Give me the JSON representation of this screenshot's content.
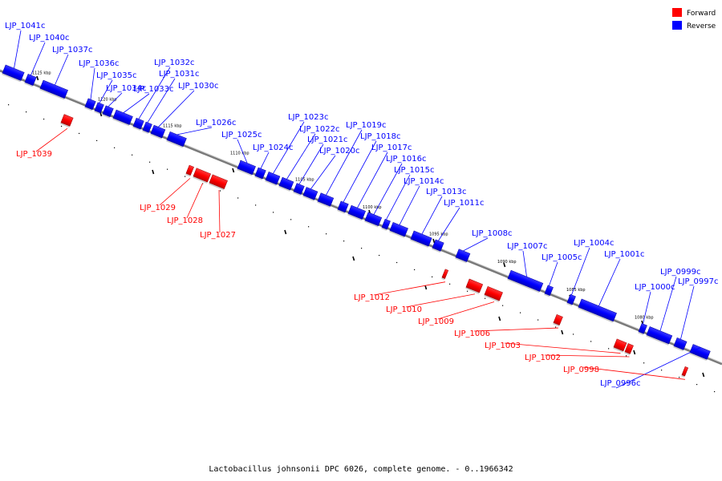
{
  "caption": "Lactobacillus johnsonii DPC 6026, complete genome. - 0..1966342",
  "legend": {
    "forward_label": "Forward",
    "reverse_label": "Reverse",
    "forward_color": "#ff0000",
    "reverse_color": "#0000ff"
  },
  "colors": {
    "forward": "#ff0000",
    "reverse": "#0000ff",
    "backbone": "#808080"
  },
  "ticks": [
    "1125 kbp",
    "1120 kbp",
    "1115 kbp",
    "1110 kbp",
    "1105 kbp",
    "1100 kbp",
    "1095 kbp",
    "1090 kbp",
    "1085 kbp",
    "1080 kbp"
  ],
  "reverse_genes": [
    "LJP_1041c",
    "LJP_1040c",
    "LJP_1037c",
    "LJP_1036c",
    "LJP_1035c",
    "LJP_1034c",
    "LJP_1033c",
    "LJP_1032c",
    "LJP_1031c",
    "LJP_1030c",
    "LJP_1026c",
    "LJP_1025c",
    "LJP_1024c",
    "LJP_1023c",
    "LJP_1022c",
    "LJP_1021c",
    "LJP_1020c",
    "LJP_1019c",
    "LJP_1018c",
    "LJP_1017c",
    "LJP_1016c",
    "LJP_1015c",
    "LJP_1014c",
    "LJP_1013c",
    "LJP_1011c",
    "LJP_1008c",
    "LJP_1007c",
    "LJP_1005c",
    "LJP_1004c",
    "LJP_1001c",
    "LJP_1000c",
    "LJP_0999c",
    "LJP_0997c",
    "LJP_0996c"
  ],
  "forward_genes": [
    "LJP_1039",
    "LJP_1029",
    "LJP_1028",
    "LJP_1027",
    "LJP_1012",
    "LJP_1010",
    "LJP_1009",
    "LJP_1006",
    "LJP_1003",
    "LJP_1002",
    "LJP_0998"
  ]
}
